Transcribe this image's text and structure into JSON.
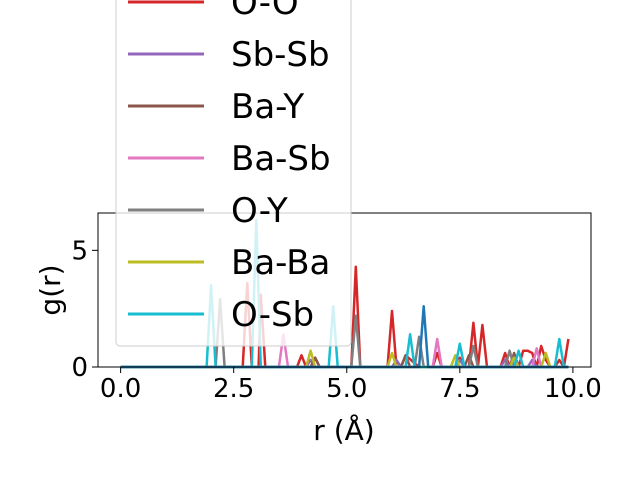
{
  "chart_data": {
    "type": "line",
    "title": "",
    "xlabel": "r (Å)",
    "ylabel": "g(r)",
    "xlim": [
      -0.5,
      10.4
    ],
    "ylim": [
      0,
      6.6
    ],
    "xticks": [
      {
        "value": 0.0,
        "label": "0.0"
      },
      {
        "value": 2.5,
        "label": "2.5"
      },
      {
        "value": 5.0,
        "label": "5.0"
      },
      {
        "value": 7.5,
        "label": "7.5"
      },
      {
        "value": 10.0,
        "label": "10.0"
      }
    ],
    "yticks": [
      {
        "value": 0,
        "label": "0"
      },
      {
        "value": 5,
        "label": "5"
      }
    ],
    "grid": false,
    "legend_position": "upper-left overlapping the plot",
    "series": [
      {
        "name": "O-O",
        "color": "#d62728",
        "x": [
          0,
          1.8,
          1.95,
          2.1,
          2.7,
          2.8,
          2.9,
          3.0,
          3.05,
          3.1,
          3.2,
          3.9,
          4.0,
          4.1,
          4.2,
          4.3,
          4.4,
          4.5,
          5.05,
          5.1,
          5.2,
          5.3,
          5.9,
          6.0,
          6.1,
          6.2,
          6.3,
          6.6,
          6.8,
          6.9,
          7.0,
          7.1,
          7.2,
          7.4,
          7.5,
          7.6,
          7.7,
          7.8,
          7.9,
          8.0,
          8.1,
          8.2,
          8.4,
          8.5,
          8.6,
          8.7,
          8.8,
          8.9,
          9.0,
          9.1,
          9.2,
          9.3,
          9.4,
          9.5,
          9.6,
          9.7,
          9.8,
          9.9
        ],
        "y": [
          0,
          0,
          0,
          0,
          0,
          3.6,
          0,
          0,
          0,
          3.1,
          0,
          0,
          0.5,
          0,
          0,
          0.4,
          0,
          0,
          0,
          0,
          4.3,
          0,
          0,
          2.4,
          0,
          0,
          0.5,
          0,
          0,
          0,
          0.6,
          0,
          0,
          0,
          0.4,
          0,
          0,
          1.9,
          0,
          1.8,
          0,
          0,
          0,
          0.6,
          0,
          0.5,
          0,
          0.7,
          0.7,
          0.6,
          0,
          0.9,
          0.3,
          0,
          0,
          0.3,
          0,
          1.2
        ]
      },
      {
        "name": "Sb-Sb",
        "color": "#9467bd",
        "x": [
          0,
          4.1,
          4.2,
          4.3,
          6.0,
          6.1,
          6.2,
          7.4,
          7.5,
          7.6,
          8.4,
          8.5,
          8.6,
          9.0,
          9.1,
          9.2,
          9.9
        ],
        "y": [
          0,
          0,
          0.3,
          0,
          0,
          0.3,
          0,
          0,
          0.3,
          0,
          0,
          0.3,
          0,
          0,
          0.3,
          0,
          0
        ]
      },
      {
        "name": "Ba-Y",
        "color": "#8c564b",
        "x": [
          0,
          4.2,
          4.3,
          4.4,
          6.2,
          6.3,
          6.4,
          7.6,
          7.7,
          7.8,
          8.6,
          8.7,
          8.8,
          9.9
        ],
        "y": [
          0,
          0,
          0.4,
          0,
          0,
          0.5,
          0,
          0,
          0.5,
          0,
          0,
          0.6,
          0,
          0
        ]
      },
      {
        "name": "Ba-Sb",
        "color": "#e377c2",
        "x": [
          0,
          3.5,
          3.6,
          3.7,
          6.9,
          7.0,
          7.1,
          9.1,
          9.2,
          9.3,
          9.9
        ],
        "y": [
          0,
          0,
          1.4,
          0,
          0,
          1.2,
          0,
          0,
          0.8,
          0,
          0
        ]
      },
      {
        "name": "O-Y",
        "color": "#7f7f7f",
        "x": [
          0,
          2.1,
          2.2,
          2.3,
          5.1,
          5.2,
          5.3,
          6.5,
          6.6,
          6.7,
          7.7,
          7.8,
          7.9,
          8.5,
          8.6,
          8.7,
          9.9
        ],
        "y": [
          0,
          0,
          2.9,
          0,
          0,
          2.2,
          0,
          0,
          1.3,
          0,
          0,
          0.9,
          0,
          0,
          0.7,
          0,
          0
        ]
      },
      {
        "name": "Ba-Ba",
        "color": "#bcbd22",
        "x": [
          0,
          4.1,
          4.2,
          4.3,
          5.9,
          6.0,
          6.1,
          7.3,
          7.4,
          7.5,
          8.6,
          8.7,
          8.8,
          9.3,
          9.4,
          9.5,
          9.9
        ],
        "y": [
          0,
          0,
          0.7,
          0,
          0,
          0.6,
          0,
          0,
          0.5,
          0,
          0,
          0.4,
          0,
          0,
          0.6,
          0,
          0
        ]
      },
      {
        "name": "O-Sb",
        "color": "#17becf",
        "x": [
          0,
          1.9,
          2.0,
          2.1,
          2.9,
          3.0,
          3.1,
          4.6,
          4.7,
          4.8,
          6.3,
          6.4,
          6.5,
          7.4,
          7.5,
          7.6,
          8.7,
          8.8,
          8.9,
          9.6,
          9.7,
          9.8,
          9.9
        ],
        "y": [
          0,
          0,
          3.5,
          0,
          0,
          6.3,
          0,
          0,
          2.6,
          0,
          0,
          1.4,
          0,
          0,
          1.0,
          0,
          0,
          0.7,
          0,
          0,
          1.2,
          0,
          0
        ]
      },
      {
        "name": "",
        "color": "#1f77b4",
        "x": [
          0,
          6.6,
          6.7,
          6.8,
          9.9
        ],
        "y": [
          0,
          0,
          2.6,
          0,
          0
        ]
      }
    ],
    "legend": [
      "O-O",
      "Sb-Sb",
      "Ba-Y",
      "Ba-Sb",
      "O-Y",
      "Ba-Ba",
      "O-Sb"
    ]
  }
}
